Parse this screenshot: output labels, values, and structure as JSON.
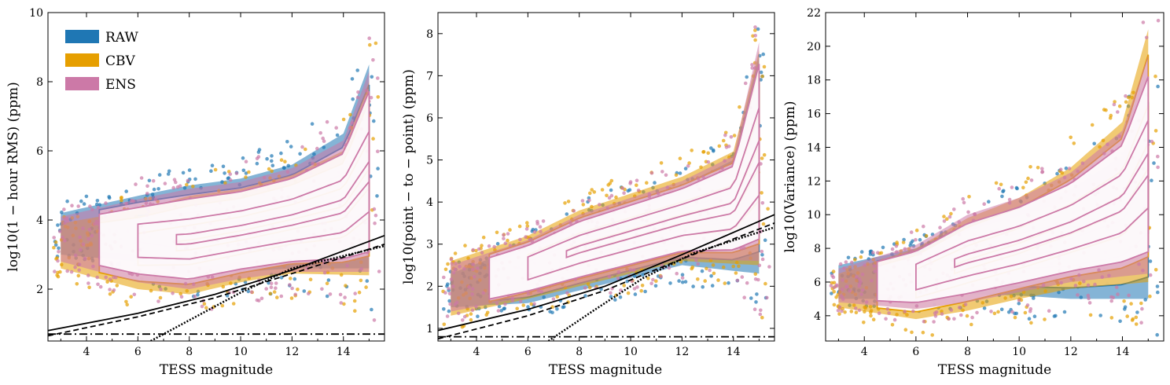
{
  "colors": {
    "raw": "#1f77b4",
    "raw_dark": "#0072b2",
    "cbv": "#e69f00",
    "ens": "#cc79a7",
    "curve": "#000000"
  },
  "legend": [
    {
      "key": "raw",
      "label": "RAW"
    },
    {
      "key": "cbv",
      "label": "CBV"
    },
    {
      "key": "ens",
      "label": "ENS"
    }
  ],
  "chart_data": [
    {
      "type": "scatter",
      "id": "rms",
      "xlabel": "TESS magnitude",
      "ylabel": "log10(1 − hour RMS) (ppm)",
      "xlim": [
        2.5,
        15.6
      ],
      "ylim": [
        0.5,
        10
      ],
      "xticks": [
        4,
        6,
        8,
        10,
        12,
        14
      ],
      "yticks": [
        2,
        4,
        6,
        8,
        10
      ],
      "series": [
        {
          "name": "RAW",
          "envelope_lower": [
            [
              3,
              3.0
            ],
            [
              6,
              2.8
            ],
            [
              8,
              2.35
            ],
            [
              10,
              2.5
            ],
            [
              12,
              2.6
            ],
            [
              15,
              2.6
            ]
          ],
          "envelope_upper": [
            [
              3,
              4.2
            ],
            [
              6,
              4.7
            ],
            [
              8,
              5.0
            ],
            [
              10,
              5.2
            ],
            [
              12,
              5.6
            ],
            [
              14,
              6.5
            ],
            [
              15,
              8.5
            ]
          ]
        },
        {
          "name": "CBV",
          "envelope_lower": [
            [
              3,
              2.6
            ],
            [
              6,
              2.0
            ],
            [
              8,
              1.85
            ],
            [
              10,
              2.2
            ],
            [
              12,
              2.45
            ],
            [
              15,
              2.4
            ]
          ],
          "envelope_upper": [
            [
              3,
              3.9
            ],
            [
              6,
              4.3
            ],
            [
              8,
              4.7
            ],
            [
              10,
              4.9
            ],
            [
              12,
              5.3
            ],
            [
              14,
              6.0
            ],
            [
              15,
              8.0
            ]
          ]
        },
        {
          "name": "ENS",
          "envelope_lower": [
            [
              3,
              2.8
            ],
            [
              6,
              2.2
            ],
            [
              8,
              2.0
            ],
            [
              10,
              2.3
            ],
            [
              12,
              2.5
            ],
            [
              15,
              2.5
            ]
          ],
          "envelope_upper": [
            [
              3,
              4.1
            ],
            [
              6,
              4.6
            ],
            [
              8,
              4.9
            ],
            [
              10,
              5.1
            ],
            [
              12,
              5.5
            ],
            [
              14,
              6.3
            ],
            [
              15,
              8.3
            ]
          ]
        }
      ],
      "reference_lines": [
        {
          "style": "solid",
          "points": [
            [
              2.5,
              0.8
            ],
            [
              6,
              1.3
            ],
            [
              9,
              1.85
            ],
            [
              12,
              2.55
            ],
            [
              15.6,
              3.55
            ]
          ]
        },
        {
          "style": "dashed",
          "points": [
            [
              2.5,
              0.65
            ],
            [
              6,
              1.2
            ],
            [
              9,
              1.75
            ],
            [
              12,
              2.45
            ],
            [
              15.6,
              3.3
            ]
          ]
        },
        {
          "style": "dash-dot",
          "points": [
            [
              2.5,
              0.7
            ],
            [
              15.6,
              0.7
            ]
          ]
        },
        {
          "style": "dotted",
          "points": [
            [
              6.5,
              0.5
            ],
            [
              8,
              1.1
            ],
            [
              10,
              1.9
            ],
            [
              12,
              2.6
            ],
            [
              15.6,
              3.25
            ]
          ]
        }
      ]
    },
    {
      "type": "scatter",
      "id": "ptp",
      "xlabel": "TESS magnitude",
      "ylabel": "log10(point − to − point) (ppm)",
      "xlim": [
        2.5,
        15.6
      ],
      "ylim": [
        0.7,
        8.5
      ],
      "xticks": [
        4,
        6,
        8,
        10,
        12,
        14
      ],
      "yticks": [
        1,
        2,
        3,
        4,
        5,
        6,
        7,
        8
      ],
      "series": [
        {
          "name": "RAW",
          "envelope_lower": [
            [
              3,
              1.5
            ],
            [
              6,
              1.6
            ],
            [
              8,
              1.9
            ],
            [
              10,
              2.2
            ],
            [
              12,
              2.5
            ],
            [
              15,
              2.3
            ]
          ],
          "envelope_upper": [
            [
              3,
              2.3
            ],
            [
              6,
              3.0
            ],
            [
              8,
              3.6
            ],
            [
              10,
              4.0
            ],
            [
              12,
              4.4
            ],
            [
              14,
              5.0
            ],
            [
              15,
              7.5
            ]
          ]
        },
        {
          "name": "CBV",
          "envelope_lower": [
            [
              3,
              1.3
            ],
            [
              6,
              1.7
            ],
            [
              8,
              2.0
            ],
            [
              10,
              2.3
            ],
            [
              12,
              2.6
            ],
            [
              15,
              2.5
            ]
          ],
          "envelope_upper": [
            [
              3,
              2.6
            ],
            [
              6,
              3.2
            ],
            [
              8,
              3.8
            ],
            [
              10,
              4.2
            ],
            [
              12,
              4.6
            ],
            [
              14,
              5.2
            ],
            [
              15,
              7.6
            ]
          ]
        },
        {
          "name": "ENS",
          "envelope_lower": [
            [
              3,
              1.4
            ],
            [
              6,
              1.75
            ],
            [
              8,
              2.05
            ],
            [
              10,
              2.35
            ],
            [
              12,
              2.65
            ],
            [
              15,
              2.6
            ]
          ],
          "envelope_upper": [
            [
              3,
              2.5
            ],
            [
              6,
              3.1
            ],
            [
              8,
              3.7
            ],
            [
              10,
              4.1
            ],
            [
              12,
              4.5
            ],
            [
              14,
              5.1
            ],
            [
              15,
              7.8
            ]
          ]
        }
      ],
      "reference_lines": [
        {
          "style": "solid",
          "points": [
            [
              2.5,
              0.95
            ],
            [
              6,
              1.45
            ],
            [
              9,
              2.0
            ],
            [
              12,
              2.75
            ],
            [
              15.6,
              3.7
            ]
          ]
        },
        {
          "style": "dashed",
          "points": [
            [
              2.5,
              0.75
            ],
            [
              6,
              1.3
            ],
            [
              9,
              1.9
            ],
            [
              12,
              2.65
            ],
            [
              15.6,
              3.5
            ]
          ]
        },
        {
          "style": "dash-dot",
          "points": [
            [
              2.5,
              0.8
            ],
            [
              15.6,
              0.8
            ]
          ]
        },
        {
          "style": "dotted",
          "points": [
            [
              6.8,
              0.7
            ],
            [
              8.5,
              1.4
            ],
            [
              10.5,
              2.2
            ],
            [
              12.5,
              2.8
            ],
            [
              15.6,
              3.4
            ]
          ]
        }
      ]
    },
    {
      "type": "scatter",
      "id": "variance",
      "xlabel": "TESS magnitude",
      "ylabel": "log10(Variance) (ppm)",
      "xlim": [
        2.5,
        15.6
      ],
      "ylim": [
        2.5,
        22
      ],
      "xticks": [
        4,
        6,
        8,
        10,
        12,
        14
      ],
      "yticks": [
        4,
        6,
        8,
        10,
        12,
        14,
        16,
        18,
        20,
        22
      ],
      "series": [
        {
          "name": "RAW",
          "envelope_lower": [
            [
              3,
              5.0
            ],
            [
              6,
              5.0
            ],
            [
              8,
              5.3
            ],
            [
              10,
              5.2
            ],
            [
              12,
              5.0
            ],
            [
              15,
              5.0
            ]
          ],
          "envelope_upper": [
            [
              3,
              7.0
            ],
            [
              6,
              8.0
            ],
            [
              8,
              9.5
            ],
            [
              10,
              10.5
            ],
            [
              12,
              11.5
            ],
            [
              14,
              13.5
            ],
            [
              15,
              18.0
            ]
          ]
        },
        {
          "name": "CBV",
          "envelope_lower": [
            [
              3,
              4.5
            ],
            [
              6,
              3.8
            ],
            [
              8,
              4.3
            ],
            [
              10,
              5.0
            ],
            [
              12,
              5.6
            ],
            [
              15,
              6.0
            ]
          ],
          "envelope_upper": [
            [
              3,
              6.5
            ],
            [
              6,
              8.0
            ],
            [
              8,
              9.8
            ],
            [
              10,
              11.0
            ],
            [
              12,
              12.8
            ],
            [
              14,
              15.5
            ],
            [
              15,
              21.0
            ]
          ]
        },
        {
          "name": "ENS",
          "envelope_lower": [
            [
              3,
              4.8
            ],
            [
              6,
              4.4
            ],
            [
              8,
              4.8
            ],
            [
              10,
              5.4
            ],
            [
              12,
              6.0
            ],
            [
              15,
              6.5
            ]
          ],
          "envelope_upper": [
            [
              3,
              6.8
            ],
            [
              6,
              8.2
            ],
            [
              8,
              10.0
            ],
            [
              10,
              11.0
            ],
            [
              12,
              12.5
            ],
            [
              14,
              15.0
            ],
            [
              15,
              19.5
            ]
          ]
        }
      ],
      "reference_lines": []
    }
  ]
}
